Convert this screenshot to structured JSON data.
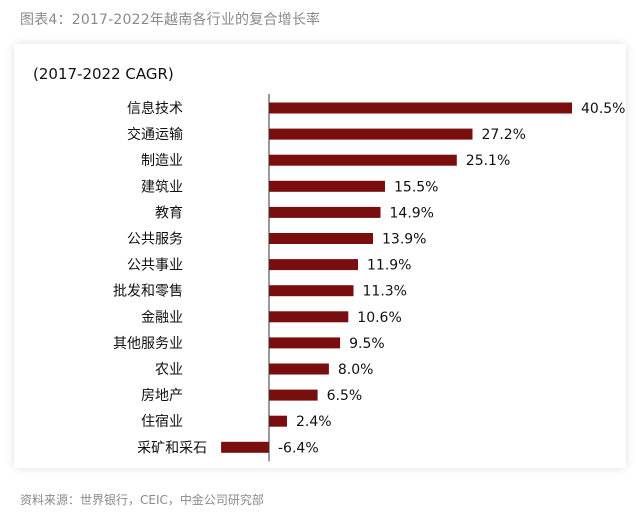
{
  "figure": {
    "title": "图表4：2017-2022年越南各行业的复合增长率",
    "source": "资料来源：世界银行，CEIC，中金公司研究部"
  },
  "colors": {
    "bar": "#7a0e0e",
    "axis": "#333333",
    "text": "#111111",
    "muted": "#8a8a8a"
  },
  "chart_data": {
    "type": "bar",
    "orientation": "horizontal",
    "subtitle": "(2017-2022 CAGR)",
    "categories": [
      "信息技术",
      "交通运输",
      "制造业",
      "建筑业",
      "教育",
      "公共服务",
      "公共事业",
      "批发和零售",
      "金融业",
      "其他服务业",
      "农业",
      "房地产",
      "住宿业",
      "采矿和采石"
    ],
    "values": [
      40.5,
      27.2,
      25.1,
      15.5,
      14.9,
      13.9,
      11.9,
      11.3,
      10.6,
      9.5,
      8.0,
      6.5,
      2.4,
      -6.4
    ],
    "value_labels": [
      "40.5%",
      "27.2%",
      "25.1%",
      "15.5%",
      "14.9%",
      "13.9%",
      "11.9%",
      "11.3%",
      "10.6%",
      "9.5%",
      "8.0%",
      "6.5%",
      "2.4%",
      "-6.4%"
    ],
    "xlim": [
      -6.4,
      40.5
    ],
    "grid": false,
    "legend": "none"
  }
}
